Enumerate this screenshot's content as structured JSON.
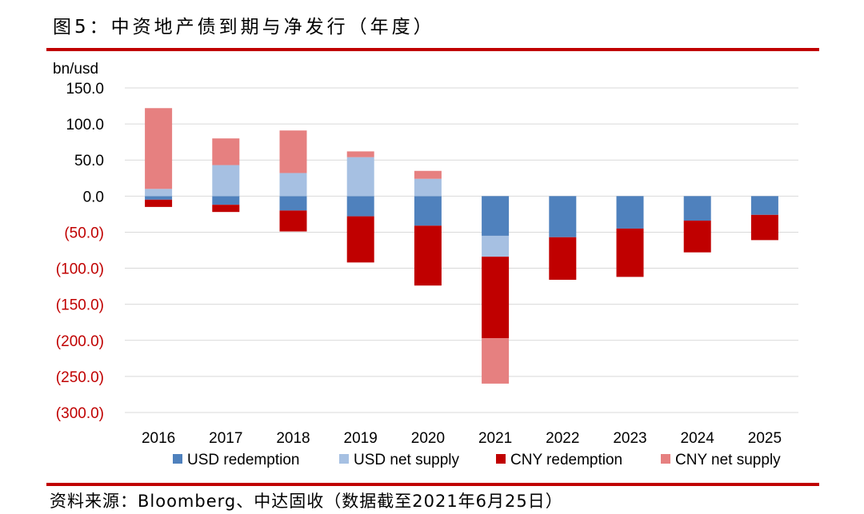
{
  "title": "图5：中资地产债到期与净发行（年度）",
  "source": "资料来源：Bloomberg、中达固收（数据截至2021年6月25日）",
  "colors": {
    "usd_redemption": "#4f81bd",
    "usd_net_supply": "#a6c0e2",
    "cny_redemption": "#c00000",
    "cny_net_supply": "#e68080",
    "rule": "#c00000",
    "negative_tick": "#c00000",
    "grid": "#d9d9d9"
  },
  "chart_data": {
    "type": "bar",
    "stacked": true,
    "ylabel": "bn/usd",
    "ylim": [
      -300,
      150
    ],
    "yticks": [
      150,
      100,
      50,
      0,
      -50,
      -100,
      -150,
      -200,
      -250,
      -300
    ],
    "ytick_labels": [
      "150.0",
      "100.0",
      "50.0",
      "0.0",
      "(50.0)",
      "(100.0)",
      "(150.0)",
      "(200.0)",
      "(250.0)",
      "(300.0)"
    ],
    "categories": [
      "2016",
      "2017",
      "2018",
      "2019",
      "2020",
      "2021",
      "2022",
      "2023",
      "2024",
      "2025"
    ],
    "grid": true,
    "legend_position": "bottom",
    "series": [
      {
        "name": "USD redemption",
        "values": [
          -5,
          -12,
          -20,
          -28,
          -41,
          -55,
          -57,
          -45,
          -34,
          -26
        ]
      },
      {
        "name": "USD net supply",
        "values": [
          10,
          43,
          32,
          54,
          24,
          -29,
          0,
          0,
          0,
          0
        ]
      },
      {
        "name": "CNY redemption",
        "values": [
          -10,
          -10,
          -29,
          -64,
          -83,
          -113,
          -59,
          -67,
          -44,
          -35
        ]
      },
      {
        "name": "CNY net supply",
        "values": [
          112,
          37,
          59,
          8,
          11,
          -63,
          0,
          0,
          0,
          0
        ]
      }
    ]
  }
}
